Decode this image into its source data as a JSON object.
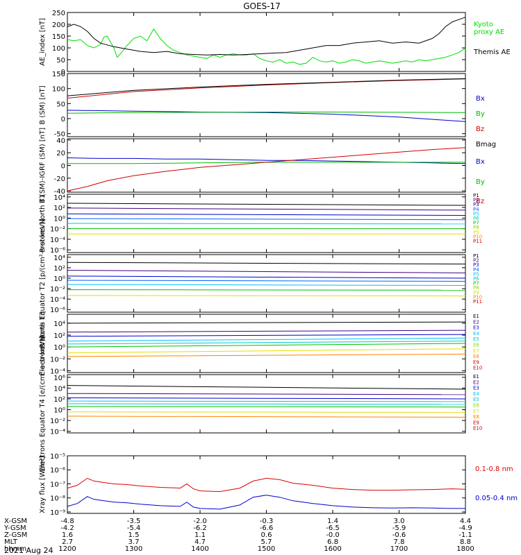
{
  "title": "GOES-17",
  "date": "2021 Aug 24",
  "chart_data": [
    {
      "type": "line",
      "ylabel": "AE_index [nT]",
      "yticks": [
        "0",
        "50",
        "100",
        "150",
        "200",
        "250"
      ],
      "ylim": [
        0,
        250
      ],
      "series": [
        {
          "name": "Kyoto proxy AE",
          "color": "#00dd00",
          "x": [
            0,
            0.1,
            0.2,
            0.3,
            0.4,
            0.5,
            0.55,
            0.6,
            0.7,
            0.75,
            0.8,
            0.9,
            1,
            1.1,
            1.2,
            1.3,
            1.4,
            1.5,
            1.6,
            1.7,
            1.8,
            1.9,
            2,
            2.1,
            2.2,
            2.3,
            2.4,
            2.5,
            2.6,
            2.7,
            2.8,
            2.9,
            3,
            3.1,
            3.2,
            3.3,
            3.4,
            3.5,
            3.6,
            3.7,
            3.8,
            3.9,
            4,
            4.1,
            4.2,
            4.3,
            4.4,
            4.5,
            4.6,
            4.7,
            4.8,
            4.9,
            5,
            5.1,
            5.2,
            5.3,
            5.4,
            5.5,
            5.6,
            5.7,
            5.8,
            5.9,
            6
          ],
          "y": [
            135,
            130,
            135,
            110,
            100,
            115,
            145,
            150,
            100,
            60,
            75,
            110,
            140,
            150,
            130,
            180,
            140,
            110,
            90,
            80,
            70,
            65,
            60,
            55,
            70,
            60,
            70,
            75,
            70,
            70,
            75,
            55,
            45,
            40,
            50,
            35,
            40,
            30,
            35,
            60,
            45,
            40,
            45,
            35,
            40,
            50,
            45,
            35,
            40,
            45,
            40,
            35,
            40,
            45,
            40,
            50,
            45,
            50,
            55,
            60,
            70,
            80,
            100
          ]
        },
        {
          "name": "Themis AE",
          "color": "#000000",
          "x": [
            0,
            0.1,
            0.2,
            0.3,
            0.4,
            0.5,
            0.7,
            0.9,
            1.1,
            1.3,
            1.5,
            1.7,
            1.9,
            2.1,
            2.3,
            2.5,
            2.7,
            2.9,
            3.1,
            3.3,
            3.5,
            3.7,
            3.9,
            4.1,
            4.3,
            4.5,
            4.7,
            4.9,
            5.1,
            5.3,
            5.5,
            5.6,
            5.7,
            5.8,
            5.9,
            6
          ],
          "y": [
            190,
            200,
            190,
            170,
            140,
            120,
            105,
            95,
            85,
            80,
            85,
            75,
            72,
            70,
            72,
            70,
            72,
            75,
            78,
            80,
            90,
            100,
            110,
            110,
            120,
            125,
            130,
            120,
            125,
            120,
            140,
            160,
            190,
            210,
            220,
            230
          ]
        }
      ]
    },
    {
      "type": "line",
      "ylabel": "B (SM) [nT]",
      "yticks": [
        "-50",
        "0",
        "50",
        "100",
        "150"
      ],
      "ylim": [
        -60,
        150
      ],
      "series": [
        {
          "name": "Bx",
          "color": "#0000cc",
          "x": [
            0,
            1,
            2,
            3,
            4,
            5,
            6
          ],
          "y": [
            28,
            25,
            22,
            20,
            15,
            5,
            -10
          ]
        },
        {
          "name": "By",
          "color": "#00bb00",
          "x": [
            0,
            1,
            2,
            3,
            4,
            5,
            6
          ],
          "y": [
            18,
            20,
            21,
            22,
            22,
            21,
            20
          ]
        },
        {
          "name": "Bz",
          "color": "#cc0000",
          "x": [
            0,
            1,
            2,
            3,
            4,
            5,
            6
          ],
          "y": [
            68,
            90,
            102,
            112,
            120,
            127,
            132
          ]
        },
        {
          "name": "Bmag",
          "color": "#000000",
          "x": [
            0,
            1,
            2,
            3,
            4,
            5,
            6
          ],
          "y": [
            76,
            94,
            105,
            114,
            121,
            128,
            133
          ]
        }
      ]
    },
    {
      "type": "line",
      "ylabel": "B (SM)-IGRF (SM) [nT]",
      "yticks": [
        "-40",
        "-20",
        "0",
        "20",
        "40"
      ],
      "ylim": [
        -42,
        42
      ],
      "series": [
        {
          "name": "Bx",
          "color": "#0000cc",
          "x": [
            0,
            0.5,
            1,
            1.5,
            2,
            2.5,
            3,
            3.5,
            4,
            4.5,
            5,
            5.5,
            6
          ],
          "y": [
            12,
            11,
            11,
            10,
            10,
            9,
            8,
            8,
            7,
            6,
            5,
            4,
            3
          ]
        },
        {
          "name": "By",
          "color": "#00bb00",
          "x": [
            0,
            1,
            2,
            3,
            4,
            5,
            6
          ],
          "y": [
            3,
            3,
            4,
            5,
            5,
            5,
            5
          ]
        },
        {
          "name": "Bz",
          "color": "#cc0000",
          "x": [
            0,
            0.3,
            0.6,
            1,
            1.5,
            2,
            2.5,
            3,
            3.5,
            4,
            4.5,
            5,
            5.5,
            6
          ],
          "y": [
            -40,
            -33,
            -24,
            -16,
            -9,
            -3,
            1,
            5,
            9,
            13,
            17,
            21,
            25,
            28
          ]
        }
      ]
    },
    {
      "type": "line",
      "ylabel": "Protons North T1",
      "log": true,
      "yticks": [
        "10⁴",
        "10²",
        "10⁰",
        "10⁻²",
        "10⁻⁴",
        "10⁻⁶"
      ],
      "ylim": [
        -6.5,
        4.5
      ],
      "legend": [
        "P1",
        "P2",
        "P3",
        "P4",
        "P5",
        "P6",
        "P7",
        "P8",
        "P9",
        "P10",
        "P11"
      ],
      "legend_colors": [
        "#000000",
        "#400080",
        "#0000cc",
        "#0060ff",
        "#00bfff",
        "#00d0b0",
        "#00c000",
        "#80e000",
        "#e0e000",
        "#ff8000",
        "#cc0000"
      ],
      "series": [
        {
          "name": "P1",
          "color": "#000000",
          "x": [
            0,
            6
          ],
          "y": [
            2.8,
            2.4
          ]
        },
        {
          "name": "P2",
          "color": "#400080",
          "x": [
            0,
            6
          ],
          "y": [
            1.9,
            1.5
          ]
        },
        {
          "name": "P3",
          "color": "#0000cc",
          "x": [
            0,
            6
          ],
          "y": [
            0.8,
            0.5
          ]
        },
        {
          "name": "P4",
          "color": "#0060ff",
          "x": [
            0,
            6
          ],
          "y": [
            -0.1,
            -0.3
          ]
        },
        {
          "name": "P5",
          "color": "#00bfff",
          "x": [
            0,
            6
          ],
          "y": [
            -1.0,
            -1.1
          ]
        },
        {
          "name": "P6",
          "color": "#00c000",
          "x": [
            0,
            6
          ],
          "y": [
            -2.0,
            -2.0
          ]
        },
        {
          "name": "P7",
          "color": "#e0e000",
          "x": [
            0,
            6
          ],
          "y": [
            -3.0,
            -3.0
          ]
        }
      ]
    },
    {
      "type": "line",
      "ylabel": "Protons Equator T2 [p/(cm²-s-sr-keV)]",
      "log": true,
      "yticks": [
        "10⁴",
        "10²",
        "10⁰",
        "10⁻²",
        "10⁻⁴",
        "10⁻⁶"
      ],
      "ylim": [
        -6.5,
        4.5
      ],
      "legend": [
        "P1",
        "P2",
        "P3",
        "P4",
        "P5",
        "P6",
        "P7",
        "P8",
        "P9",
        "P10",
        "P11"
      ],
      "legend_colors": [
        "#000000",
        "#400080",
        "#0000cc",
        "#0060ff",
        "#00bfff",
        "#00d0b0",
        "#00c000",
        "#80e000",
        "#e0e000",
        "#ff8000",
        "#cc0000"
      ],
      "series": [
        {
          "name": "P1",
          "color": "#000000",
          "x": [
            0,
            6
          ],
          "y": [
            3.0,
            2.7
          ]
        },
        {
          "name": "P2",
          "color": "#400080",
          "x": [
            0,
            6
          ],
          "y": [
            1.5,
            1.0
          ]
        },
        {
          "name": "P3",
          "color": "#0000cc",
          "x": [
            0,
            6
          ],
          "y": [
            0.4,
            0.0
          ]
        },
        {
          "name": "P4",
          "color": "#0060ff",
          "x": [
            0,
            6
          ],
          "y": [
            -0.4,
            -0.6
          ]
        },
        {
          "name": "P5",
          "color": "#00bfff",
          "x": [
            0,
            6
          ],
          "y": [
            -1.2,
            -1.4
          ]
        },
        {
          "name": "P6",
          "color": "#00c000",
          "x": [
            0,
            6
          ],
          "y": [
            -2.2,
            -2.3
          ]
        },
        {
          "name": "P7",
          "color": "#e0e000",
          "x": [
            0,
            6
          ],
          "y": [
            -3.3,
            -3.4
          ]
        }
      ]
    },
    {
      "type": "line",
      "ylabel": "Electrons North T3",
      "log": true,
      "yticks": [
        "10⁴",
        "10²",
        "10⁰",
        "10⁻²",
        "10⁻⁴"
      ],
      "ylim": [
        -4.3,
        5.5
      ],
      "legend": [
        "E1",
        "E2",
        "E3",
        "E4",
        "E5",
        "E6",
        "E7",
        "E8",
        "E9",
        "E10"
      ],
      "legend_colors": [
        "#000000",
        "#400080",
        "#0000cc",
        "#00bfff",
        "#00c8c8",
        "#80e000",
        "#e0e000",
        "#ff8000",
        "#cc0000",
        "#cc0000"
      ],
      "series": [
        {
          "name": "E1",
          "color": "#000000",
          "x": [
            0,
            6
          ],
          "y": [
            4.0,
            4.2
          ]
        },
        {
          "name": "E2",
          "color": "#400080",
          "x": [
            0,
            6
          ],
          "y": [
            2.5,
            2.8
          ]
        },
        {
          "name": "E3",
          "color": "#0000cc",
          "x": [
            0,
            6
          ],
          "y": [
            1.8,
            2.1
          ]
        },
        {
          "name": "E4",
          "color": "#00bfff",
          "x": [
            0,
            6
          ],
          "y": [
            1.0,
            1.5
          ]
        },
        {
          "name": "E5",
          "color": "#00c8c8",
          "x": [
            0,
            6
          ],
          "y": [
            0.5,
            1.0
          ]
        },
        {
          "name": "E6",
          "color": "#00c000",
          "x": [
            0,
            6
          ],
          "y": [
            0.0,
            0.6
          ]
        },
        {
          "name": "E7",
          "color": "#e0e000",
          "x": [
            0,
            6
          ],
          "y": [
            -1.0,
            -0.3
          ]
        },
        {
          "name": "E8",
          "color": "#ff8000",
          "x": [
            0,
            6
          ],
          "y": [
            -1.6,
            -1.2
          ]
        }
      ]
    },
    {
      "type": "line",
      "ylabel": "Electrons Equator T4 [e/(cm²-s-sr-keV)]",
      "log": true,
      "yticks": [
        "10⁶",
        "10⁴",
        "10²",
        "10⁰",
        "10⁻²",
        "10⁻⁴"
      ],
      "ylim": [
        -4.3,
        6.5
      ],
      "legend": [
        "E1",
        "E2",
        "E3",
        "E4",
        "E5",
        "E6",
        "E7",
        "E8",
        "E9",
        "E10"
      ],
      "legend_colors": [
        "#000000",
        "#400080",
        "#0000cc",
        "#00bfff",
        "#00c8c8",
        "#80e000",
        "#e0e000",
        "#ff8000",
        "#cc0000",
        "#cc0000"
      ],
      "series": [
        {
          "name": "E1",
          "color": "#000000",
          "x": [
            0,
            6
          ],
          "y": [
            4.5,
            3.8
          ]
        },
        {
          "name": "E2",
          "color": "#400080",
          "x": [
            0,
            6
          ],
          "y": [
            3.0,
            2.8
          ]
        },
        {
          "name": "E3",
          "color": "#0000cc",
          "x": [
            0,
            6
          ],
          "y": [
            2.2,
            2.0
          ]
        },
        {
          "name": "E4",
          "color": "#00bfff",
          "x": [
            0,
            6
          ],
          "y": [
            1.6,
            1.5
          ]
        },
        {
          "name": "E5",
          "color": "#00c8c8",
          "x": [
            0,
            6
          ],
          "y": [
            1.1,
            1.0
          ]
        },
        {
          "name": "E6",
          "color": "#00c000",
          "x": [
            0,
            6
          ],
          "y": [
            0.6,
            0.5
          ]
        },
        {
          "name": "E7",
          "color": "#e0e000",
          "x": [
            0,
            6
          ],
          "y": [
            -0.4,
            -0.5
          ]
        },
        {
          "name": "E8",
          "color": "#ff8000",
          "x": [
            0,
            6
          ],
          "y": [
            -1.2,
            -1.4
          ]
        }
      ]
    },
    {
      "type": "line",
      "ylabel": "Xray flux [W/m²]",
      "log": true,
      "yticks": [
        "10⁻⁵",
        "10⁻⁶",
        "10⁻⁷",
        "10⁻⁸",
        "10⁻⁹"
      ],
      "ylim": [
        -9.1,
        -5
      ],
      "series": [
        {
          "name": "0.1-0.8 nm",
          "color": "#dd0000",
          "x": [
            0,
            0.15,
            0.3,
            0.4,
            0.55,
            0.7,
            0.9,
            1.1,
            1.4,
            1.7,
            1.8,
            1.9,
            2.0,
            2.3,
            2.6,
            2.8,
            3.0,
            3.2,
            3.4,
            3.7,
            4.0,
            4.3,
            4.6,
            4.9,
            5.2,
            5.5,
            5.8,
            6
          ],
          "y": [
            -7.3,
            -7.1,
            -6.6,
            -6.8,
            -6.9,
            -7.0,
            -7.05,
            -7.15,
            -7.25,
            -7.3,
            -7.0,
            -7.35,
            -7.5,
            -7.55,
            -7.3,
            -6.8,
            -6.6,
            -6.7,
            -6.95,
            -7.1,
            -7.3,
            -7.4,
            -7.45,
            -7.45,
            -7.42,
            -7.4,
            -7.35,
            -7.38
          ]
        },
        {
          "name": "0.05-0.4 nm",
          "color": "#0000cc",
          "x": [
            0,
            0.15,
            0.3,
            0.4,
            0.55,
            0.7,
            0.9,
            1.1,
            1.4,
            1.7,
            1.8,
            1.9,
            2.0,
            2.3,
            2.6,
            2.8,
            3.0,
            3.2,
            3.4,
            3.7,
            4.0,
            4.3,
            4.6,
            4.9,
            5.2,
            5.5,
            5.8,
            6
          ],
          "y": [
            -8.6,
            -8.4,
            -7.9,
            -8.1,
            -8.2,
            -8.3,
            -8.35,
            -8.45,
            -8.55,
            -8.6,
            -8.3,
            -8.65,
            -8.75,
            -8.8,
            -8.5,
            -7.95,
            -7.8,
            -7.95,
            -8.2,
            -8.4,
            -8.55,
            -8.65,
            -8.7,
            -8.72,
            -8.7,
            -8.72,
            -8.75,
            -8.75
          ]
        }
      ]
    }
  ],
  "bottom_axis": {
    "row_labels": [
      "X-GSM",
      "Y-GSM",
      "Z-GSM",
      "MLT",
      "hhmm"
    ],
    "columns": [
      {
        "x": 0,
        "values": [
          "-4.8",
          "-4.2",
          "1.6",
          "2.7",
          "1200"
        ]
      },
      {
        "x": 1,
        "values": [
          "-3.5",
          "-5.4",
          "1.5",
          "3.7",
          "1300"
        ]
      },
      {
        "x": 2,
        "values": [
          "-2.0",
          "-6.2",
          "1.1",
          "4.7",
          "1400"
        ]
      },
      {
        "x": 3,
        "values": [
          "-0.3",
          "-6.6",
          "0.6",
          "5.7",
          "1500"
        ]
      },
      {
        "x": 4,
        "values": [
          "1.4",
          "-6.5",
          "-0.0",
          "6.8",
          "1600"
        ]
      },
      {
        "x": 5,
        "values": [
          "3.0",
          "-5.9",
          "-0.6",
          "7.8",
          "1700"
        ]
      },
      {
        "x": 6,
        "values": [
          "4.4",
          "-4.9",
          "-1.1",
          "8.8",
          "1800"
        ]
      }
    ]
  }
}
